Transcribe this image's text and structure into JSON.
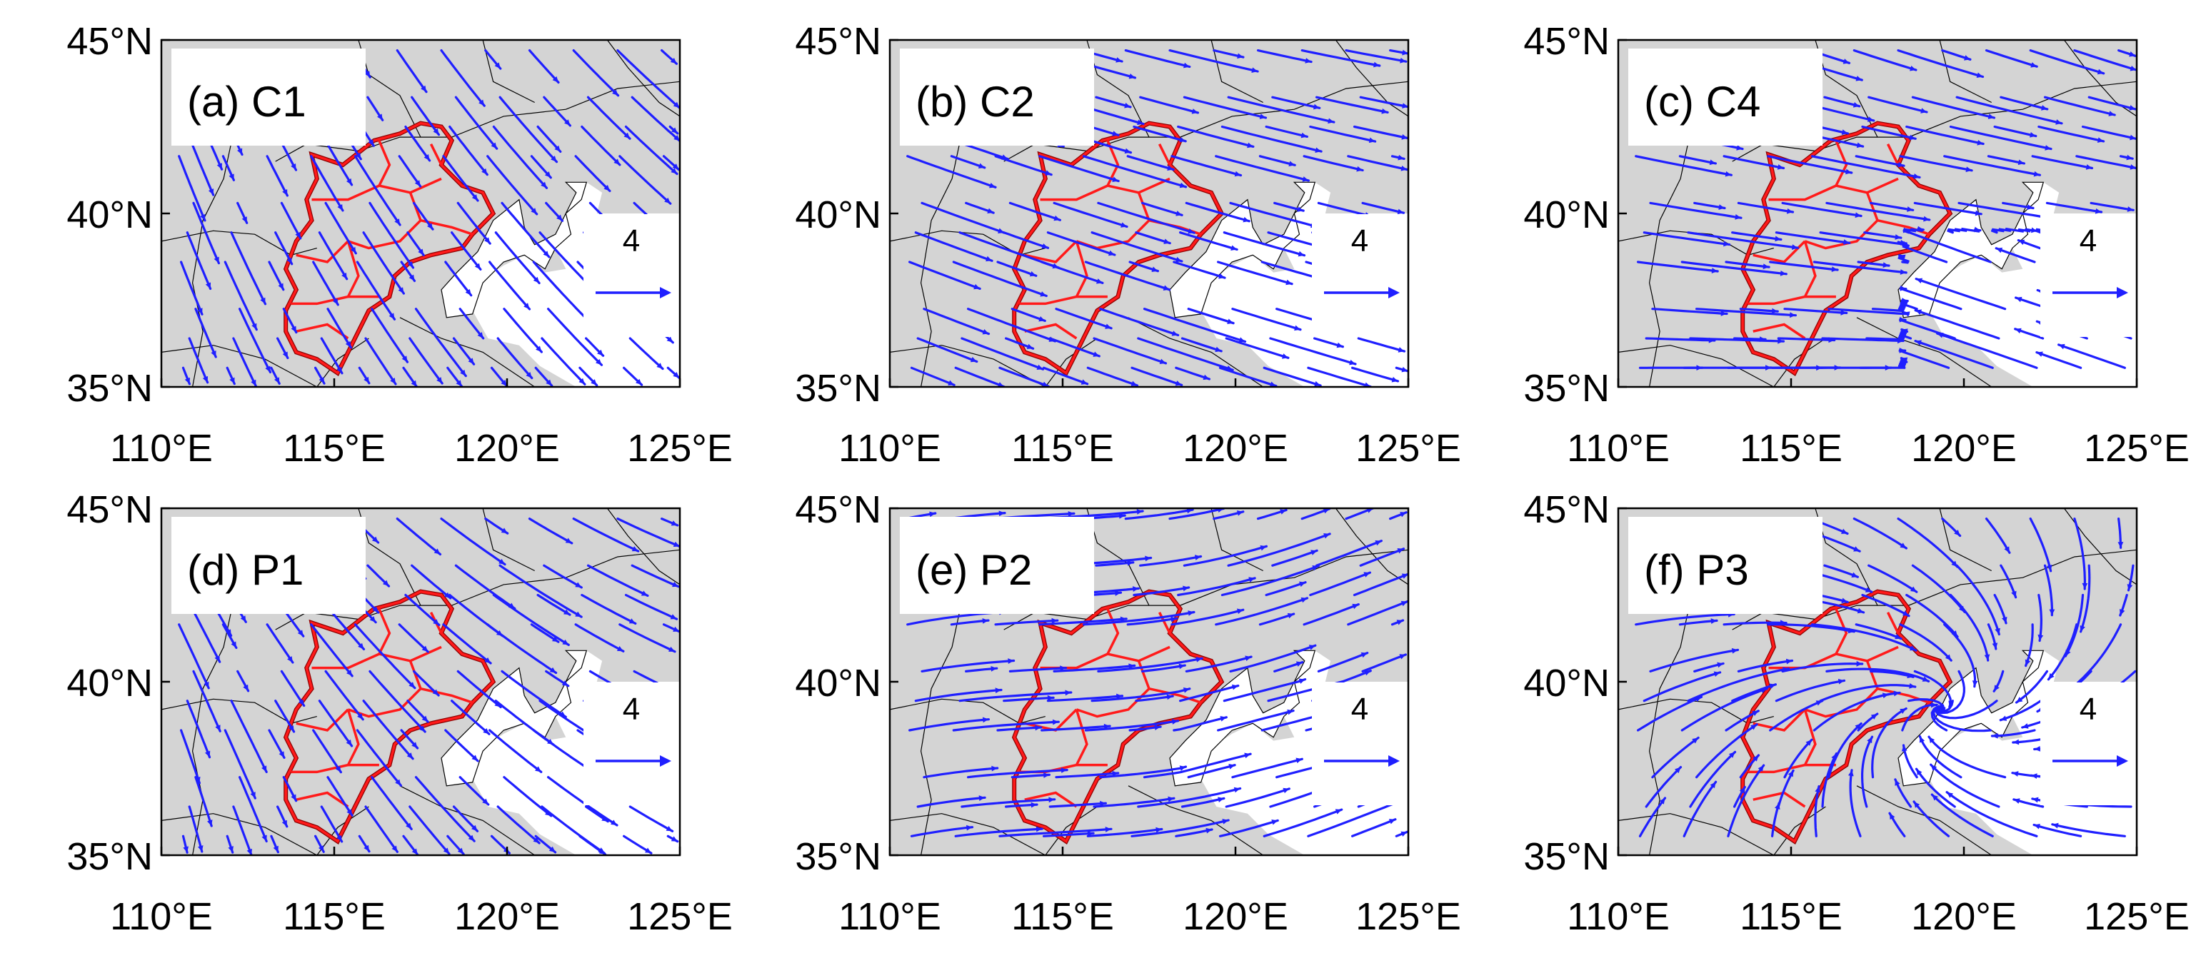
{
  "colors": {
    "land": "#d4d4d4",
    "sea": "#ffffff",
    "streamline": "#1f1fff",
    "region_border": "#ff1a1a",
    "region_border_dark": "#8b0000",
    "coast": "#000000"
  },
  "axes": {
    "lon_ticks": [
      "110°E",
      "115°E",
      "120°E",
      "125°E"
    ],
    "lat_ticks": [
      "45°N",
      "40°N",
      "35°N"
    ],
    "lon_range": [
      110,
      125
    ],
    "lat_range": [
      35,
      45
    ]
  },
  "reference_vector": {
    "label": "4"
  },
  "panels": [
    {
      "id": "a",
      "label": "(a) C1",
      "flow": "C1"
    },
    {
      "id": "b",
      "label": "(b) C2",
      "flow": "C2"
    },
    {
      "id": "c",
      "label": "(c) C4",
      "flow": "C4"
    },
    {
      "id": "d",
      "label": "(d) P1",
      "flow": "P1"
    },
    {
      "id": "e",
      "label": "(e) P2",
      "flow": "P2"
    },
    {
      "id": "f",
      "label": "(f) P3",
      "flow": "P3"
    }
  ]
}
